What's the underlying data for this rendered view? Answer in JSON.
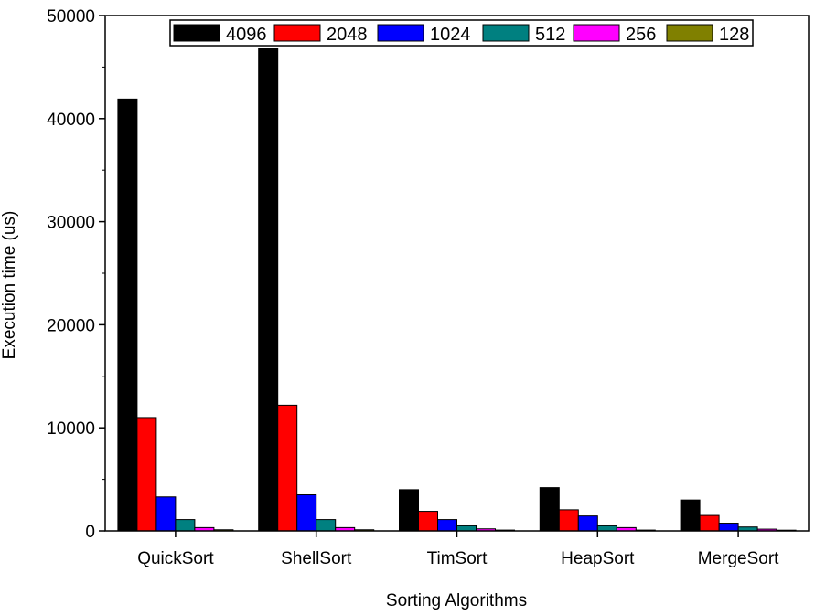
{
  "chart_data": {
    "type": "bar",
    "xlabel": "Sorting Algorithms",
    "ylabel": "Execution time (us)",
    "ylim": [
      0,
      50000
    ],
    "yticks": [
      0,
      10000,
      20000,
      30000,
      40000,
      50000
    ],
    "categories": [
      "QuickSort",
      "ShellSort",
      "TimSort",
      "HeapSort",
      "MergeSort"
    ],
    "legend_position": "top-right",
    "series": [
      {
        "name": "4096",
        "color": "#000000",
        "values": [
          41900,
          46800,
          4000,
          4200,
          3000
        ]
      },
      {
        "name": "2048",
        "color": "#ff0000",
        "values": [
          11000,
          12200,
          1900,
          2050,
          1500
        ]
      },
      {
        "name": "1024",
        "color": "#0000ff",
        "values": [
          3300,
          3500,
          1100,
          1450,
          750
        ]
      },
      {
        "name": "512",
        "color": "#008080",
        "values": [
          1100,
          1100,
          500,
          500,
          380
        ]
      },
      {
        "name": "256",
        "color": "#ff00ff",
        "values": [
          320,
          320,
          200,
          320,
          170
        ]
      },
      {
        "name": "128",
        "color": "#808000",
        "values": [
          110,
          110,
          80,
          80,
          70
        ]
      }
    ]
  }
}
